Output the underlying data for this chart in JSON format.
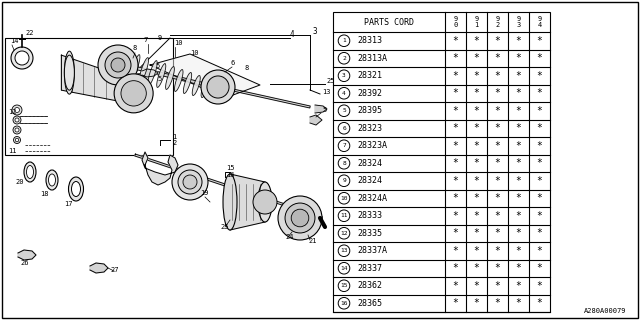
{
  "diagram_ref": "A280A00079",
  "bg_color": "#ffffff",
  "table": {
    "rows": [
      [
        1,
        "28313"
      ],
      [
        2,
        "28313A"
      ],
      [
        3,
        "28321"
      ],
      [
        4,
        "28392"
      ],
      [
        5,
        "28395"
      ],
      [
        6,
        "28323"
      ],
      [
        7,
        "28323A"
      ],
      [
        8,
        "28324"
      ],
      [
        9,
        "28324"
      ],
      [
        10,
        "28324A"
      ],
      [
        11,
        "28333"
      ],
      [
        12,
        "28335"
      ],
      [
        13,
        "28337A"
      ],
      [
        14,
        "28337"
      ],
      [
        15,
        "28362"
      ],
      [
        16,
        "28365"
      ]
    ]
  }
}
